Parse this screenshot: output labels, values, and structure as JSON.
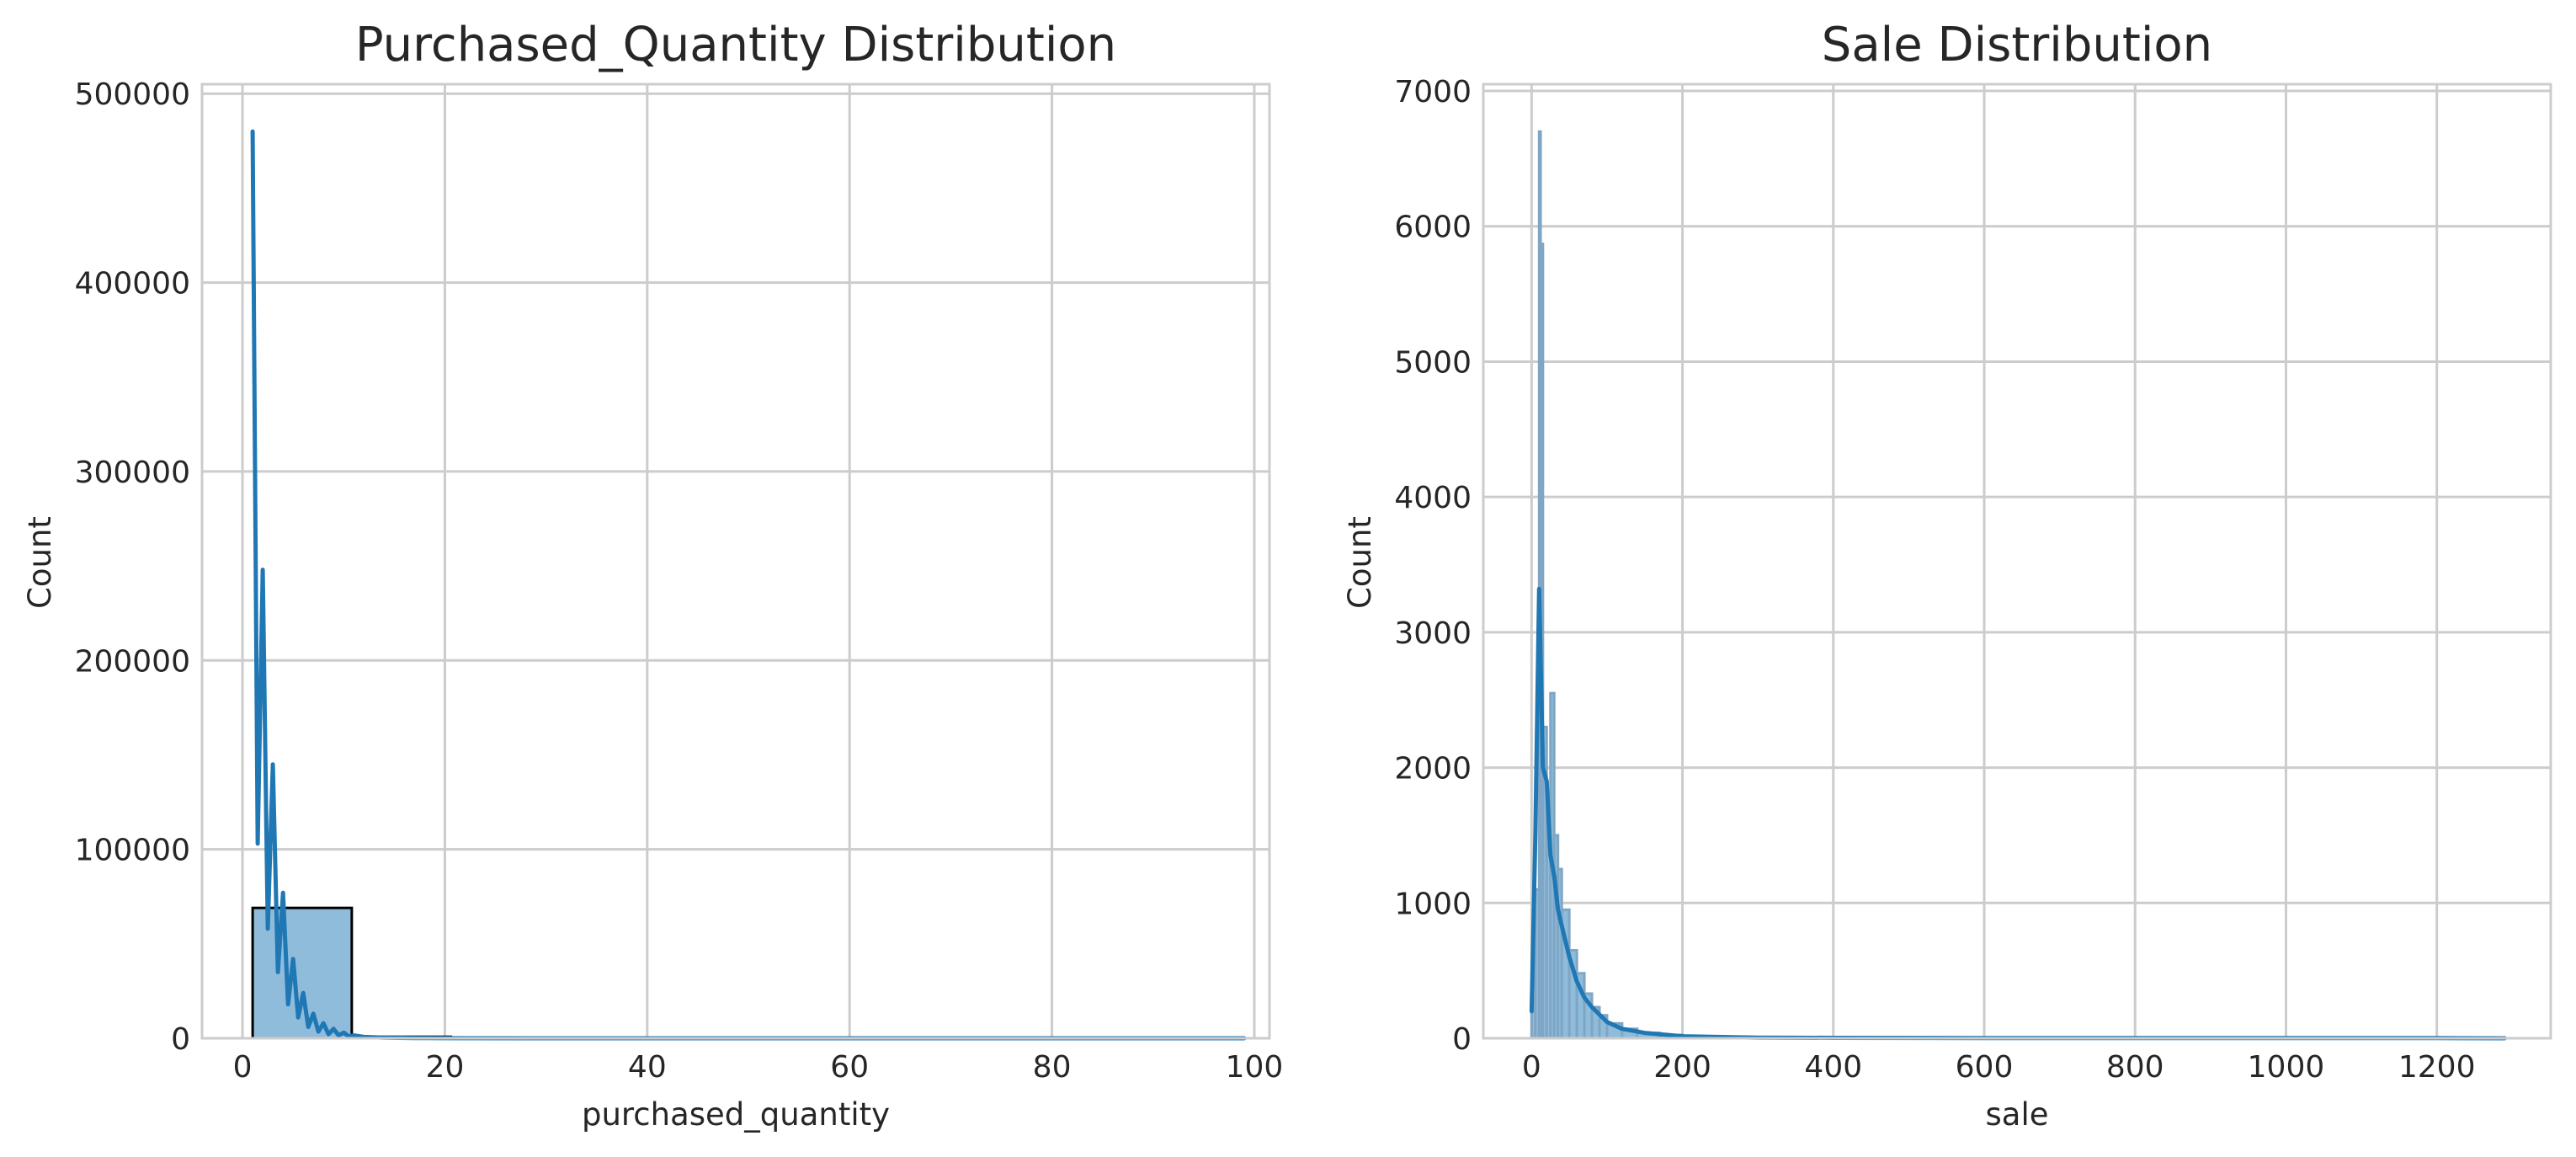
{
  "chart_data": [
    {
      "type": "histogram",
      "title": "Purchased_Quantity Distribution",
      "xlabel": "purchased_quantity",
      "ylabel": "Count",
      "xlim": [
        -4,
        101.5
      ],
      "ylim": [
        0,
        505000
      ],
      "xticks": [
        0,
        20,
        40,
        60,
        80,
        100
      ],
      "yticks": [
        0,
        100000,
        200000,
        300000,
        400000,
        500000
      ],
      "grid": true,
      "bar_fill": "#8fbcdb",
      "bar_stroke": "#000000",
      "line_color": "#1f77b4",
      "bins": [
        {
          "x0": 1,
          "x1": 10.8,
          "count": 69000
        },
        {
          "x0": 10.8,
          "x1": 20.6,
          "count": 800
        },
        {
          "x0": 20.6,
          "x1": 30.4,
          "count": 150
        },
        {
          "x0": 30.4,
          "x1": 40.2,
          "count": 60
        },
        {
          "x0": 40.2,
          "x1": 50.0,
          "count": 30
        },
        {
          "x0": 50.0,
          "x1": 59.8,
          "count": 20
        },
        {
          "x0": 59.8,
          "x1": 69.6,
          "count": 10
        },
        {
          "x0": 69.6,
          "x1": 79.4,
          "count": 8
        },
        {
          "x0": 79.4,
          "x1": 89.2,
          "count": 5
        },
        {
          "x0": 89.2,
          "x1": 99,
          "count": 5
        }
      ],
      "kde": {
        "x": [
          1,
          1.5,
          2,
          2.5,
          3,
          3.5,
          4,
          4.5,
          5,
          5.5,
          6,
          6.5,
          7,
          7.5,
          8,
          8.5,
          9,
          9.5,
          10,
          10.5,
          11,
          12,
          14,
          17,
          20,
          30,
          40,
          60,
          80,
          99
        ],
        "y": [
          480000,
          103000,
          248000,
          58000,
          145000,
          35000,
          77000,
          18000,
          42000,
          11000,
          24000,
          6000,
          13000,
          3500,
          8000,
          2200,
          5000,
          1500,
          3000,
          1000,
          1500,
          700,
          300,
          150,
          50,
          10,
          5,
          2,
          1,
          0
        ]
      }
    },
    {
      "type": "histogram",
      "title": "Sale Distribution",
      "xlabel": "sale",
      "ylabel": "Count",
      "xlim": [
        -64,
        1351
      ],
      "ylim": [
        0,
        7050
      ],
      "xticks": [
        0,
        200,
        400,
        600,
        800,
        1000,
        1200
      ],
      "yticks": [
        0,
        1000,
        2000,
        3000,
        4000,
        5000,
        6000,
        7000
      ],
      "grid": true,
      "bar_fill": "#8fbcdb",
      "bar_stroke": "#7fa6c4",
      "line_color": "#1f77b4",
      "bins": [
        {
          "x0": 0,
          "x1": 5,
          "count": 300
        },
        {
          "x0": 5,
          "x1": 10,
          "count": 1100
        },
        {
          "x0": 10,
          "x1": 12,
          "count": 6700
        },
        {
          "x0": 12,
          "x1": 15,
          "count": 5870
        },
        {
          "x0": 15,
          "x1": 20,
          "count": 2300
        },
        {
          "x0": 20,
          "x1": 25,
          "count": 1700
        },
        {
          "x0": 25,
          "x1": 30,
          "count": 2550
        },
        {
          "x0": 30,
          "x1": 35,
          "count": 1500
        },
        {
          "x0": 35,
          "x1": 40,
          "count": 1250
        },
        {
          "x0": 40,
          "x1": 50,
          "count": 950
        },
        {
          "x0": 50,
          "x1": 60,
          "count": 650
        },
        {
          "x0": 60,
          "x1": 70,
          "count": 480
        },
        {
          "x0": 70,
          "x1": 80,
          "count": 330
        },
        {
          "x0": 80,
          "x1": 90,
          "count": 230
        },
        {
          "x0": 90,
          "x1": 100,
          "count": 170
        },
        {
          "x0": 100,
          "x1": 120,
          "count": 110
        },
        {
          "x0": 120,
          "x1": 140,
          "count": 70
        },
        {
          "x0": 140,
          "x1": 170,
          "count": 40
        },
        {
          "x0": 170,
          "x1": 200,
          "count": 25
        },
        {
          "x0": 200,
          "x1": 250,
          "count": 12
        },
        {
          "x0": 250,
          "x1": 300,
          "count": 6
        },
        {
          "x0": 300,
          "x1": 1290,
          "count": 2
        }
      ],
      "kde": {
        "x": [
          0,
          5,
          10,
          15,
          20,
          25,
          30,
          35,
          40,
          50,
          60,
          70,
          80,
          100,
          120,
          150,
          200,
          300,
          400,
          600,
          800,
          1000,
          1200,
          1290
        ],
        "y": [
          200,
          1500,
          3320,
          2000,
          1900,
          1350,
          1200,
          950,
          830,
          600,
          420,
          300,
          230,
          120,
          70,
          40,
          15,
          5,
          3,
          1,
          1,
          1,
          1,
          0
        ]
      }
    }
  ]
}
